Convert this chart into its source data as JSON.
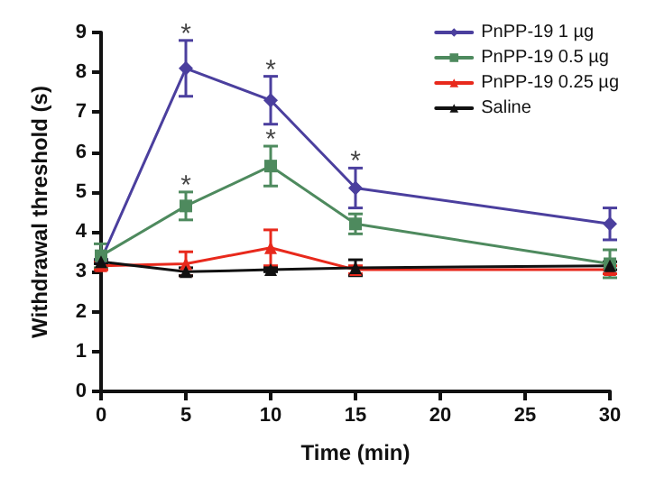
{
  "chart_data": {
    "type": "line",
    "xlabel": "Time (min)",
    "ylabel": "Withdrawal threshold (s)",
    "x": [
      0,
      5,
      10,
      15,
      30
    ],
    "xlim": [
      0,
      30
    ],
    "xticks": [
      0,
      5,
      10,
      15,
      20,
      25,
      30
    ],
    "ylim": [
      0,
      9
    ],
    "yticks": [
      0,
      1,
      2,
      3,
      4,
      5,
      6,
      7,
      8,
      9
    ],
    "grid": false,
    "legend": "top right",
    "line_style": "solid",
    "series": [
      {
        "name": "PnPP-19 1 µg",
        "color": "#4b3f9e",
        "marker": "diamond",
        "values": [
          3.3,
          8.1,
          7.3,
          5.1,
          4.2
        ],
        "errors": [
          null,
          0.7,
          0.6,
          0.5,
          0.4
        ]
      },
      {
        "name": "PnPP-19 0.5 µg",
        "color": "#4e8a5e",
        "marker": "square",
        "values": [
          3.4,
          4.65,
          5.65,
          4.2,
          3.2
        ],
        "errors": [
          0.3,
          0.35,
          0.5,
          0.25,
          0.35
        ]
      },
      {
        "name": "PnPP-19 0.25 µg",
        "color": "#e8291c",
        "marker": "triangle",
        "values": [
          3.15,
          3.2,
          3.6,
          3.05,
          3.05
        ],
        "errors": [
          0.1,
          0.3,
          0.45,
          0.1,
          0.1
        ]
      },
      {
        "name": "Saline",
        "color": "#111111",
        "marker": "triangle",
        "values": [
          3.25,
          3.0,
          3.05,
          3.1,
          3.15
        ],
        "errors": [
          0.05,
          0.1,
          0.05,
          0.2,
          0.1
        ]
      }
    ],
    "annotations": [
      {
        "text": "*",
        "x": 5,
        "y": 8.1
      },
      {
        "text": "*",
        "x": 10,
        "y": 7.3
      },
      {
        "text": "*",
        "x": 15,
        "y": 5.1
      },
      {
        "text": "*",
        "x": 5,
        "y": 4.65
      },
      {
        "text": "*",
        "x": 10,
        "y": 5.65
      }
    ]
  }
}
